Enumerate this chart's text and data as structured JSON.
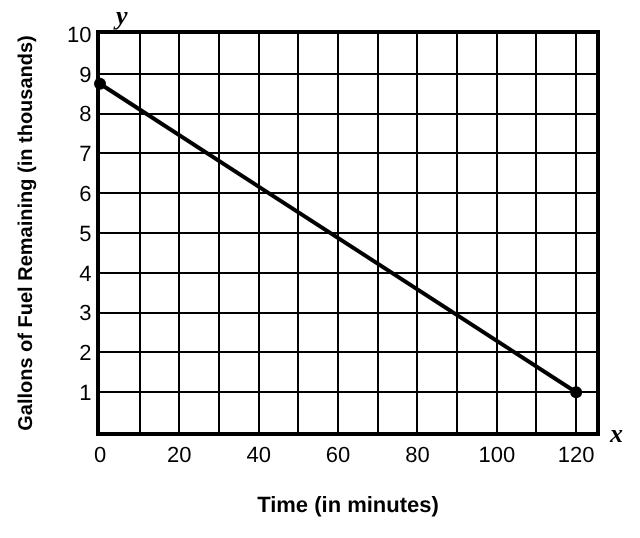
{
  "chart_data": {
    "type": "line",
    "xlabel": "Time (in minutes)",
    "ylabel": "Gallons of Fuel Remaining (in thousands)",
    "x": [
      0,
      120
    ],
    "series": [
      {
        "color": "#000000",
        "values": [
          8.75,
          1
        ]
      }
    ],
    "marker": "circle",
    "line_style": "solid",
    "grid": true,
    "legend": false,
    "xlim": [
      0,
      125
    ],
    "ylim": [
      0,
      10
    ],
    "xticks": [
      0,
      {
        "value": 10,
        "label": null
      },
      20,
      {
        "value": 30,
        "label": null
      },
      40,
      {
        "value": 50,
        "label": null
      },
      60,
      {
        "value": 70,
        "label": null
      },
      80,
      {
        "value": 90,
        "label": null
      },
      100,
      {
        "value": 110,
        "label": null
      },
      120
    ],
    "yticks": [
      {
        "value": 0,
        "label": null
      },
      1,
      2,
      3,
      4,
      5,
      6,
      7,
      8,
      9,
      10
    ],
    "annotations": [
      "x",
      "y"
    ]
  }
}
